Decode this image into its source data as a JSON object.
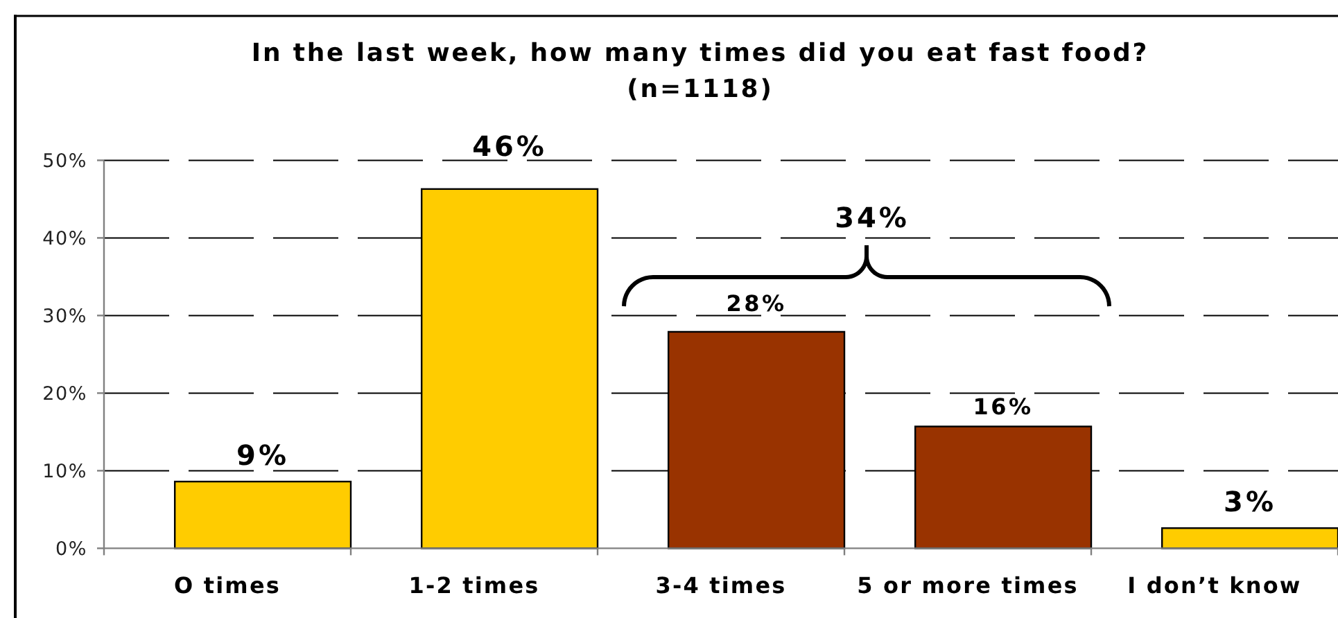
{
  "chart_data": {
    "type": "bar",
    "title": "In the last week, how many times did you eat fast food?",
    "subtitle": "(n=1118)",
    "categories": [
      "O times",
      "1-2 times",
      "3-4 times",
      "5 or more times",
      "I don’t know"
    ],
    "values": [
      8.6,
      46.3,
      27.9,
      15.7,
      2.6
    ],
    "colors": [
      "#ffcc00",
      "#ffcc00",
      "#993300",
      "#993300",
      "#ffcc00"
    ],
    "value_labels": [
      "9%",
      "46%",
      "28%",
      "16%",
      "3%"
    ],
    "annotations": [
      "34%"
    ],
    "ylim": [
      0,
      50
    ],
    "yticks": [
      {
        "value": 0,
        "label": "0%"
      },
      {
        "value": 10,
        "label": "10%"
      },
      {
        "value": 20,
        "label": "20%"
      },
      {
        "value": 30,
        "label": "30%"
      },
      {
        "value": 40,
        "label": "40%"
      },
      {
        "value": 50,
        "label": "50%"
      }
    ],
    "grid": "y",
    "line_style": "dashed"
  }
}
